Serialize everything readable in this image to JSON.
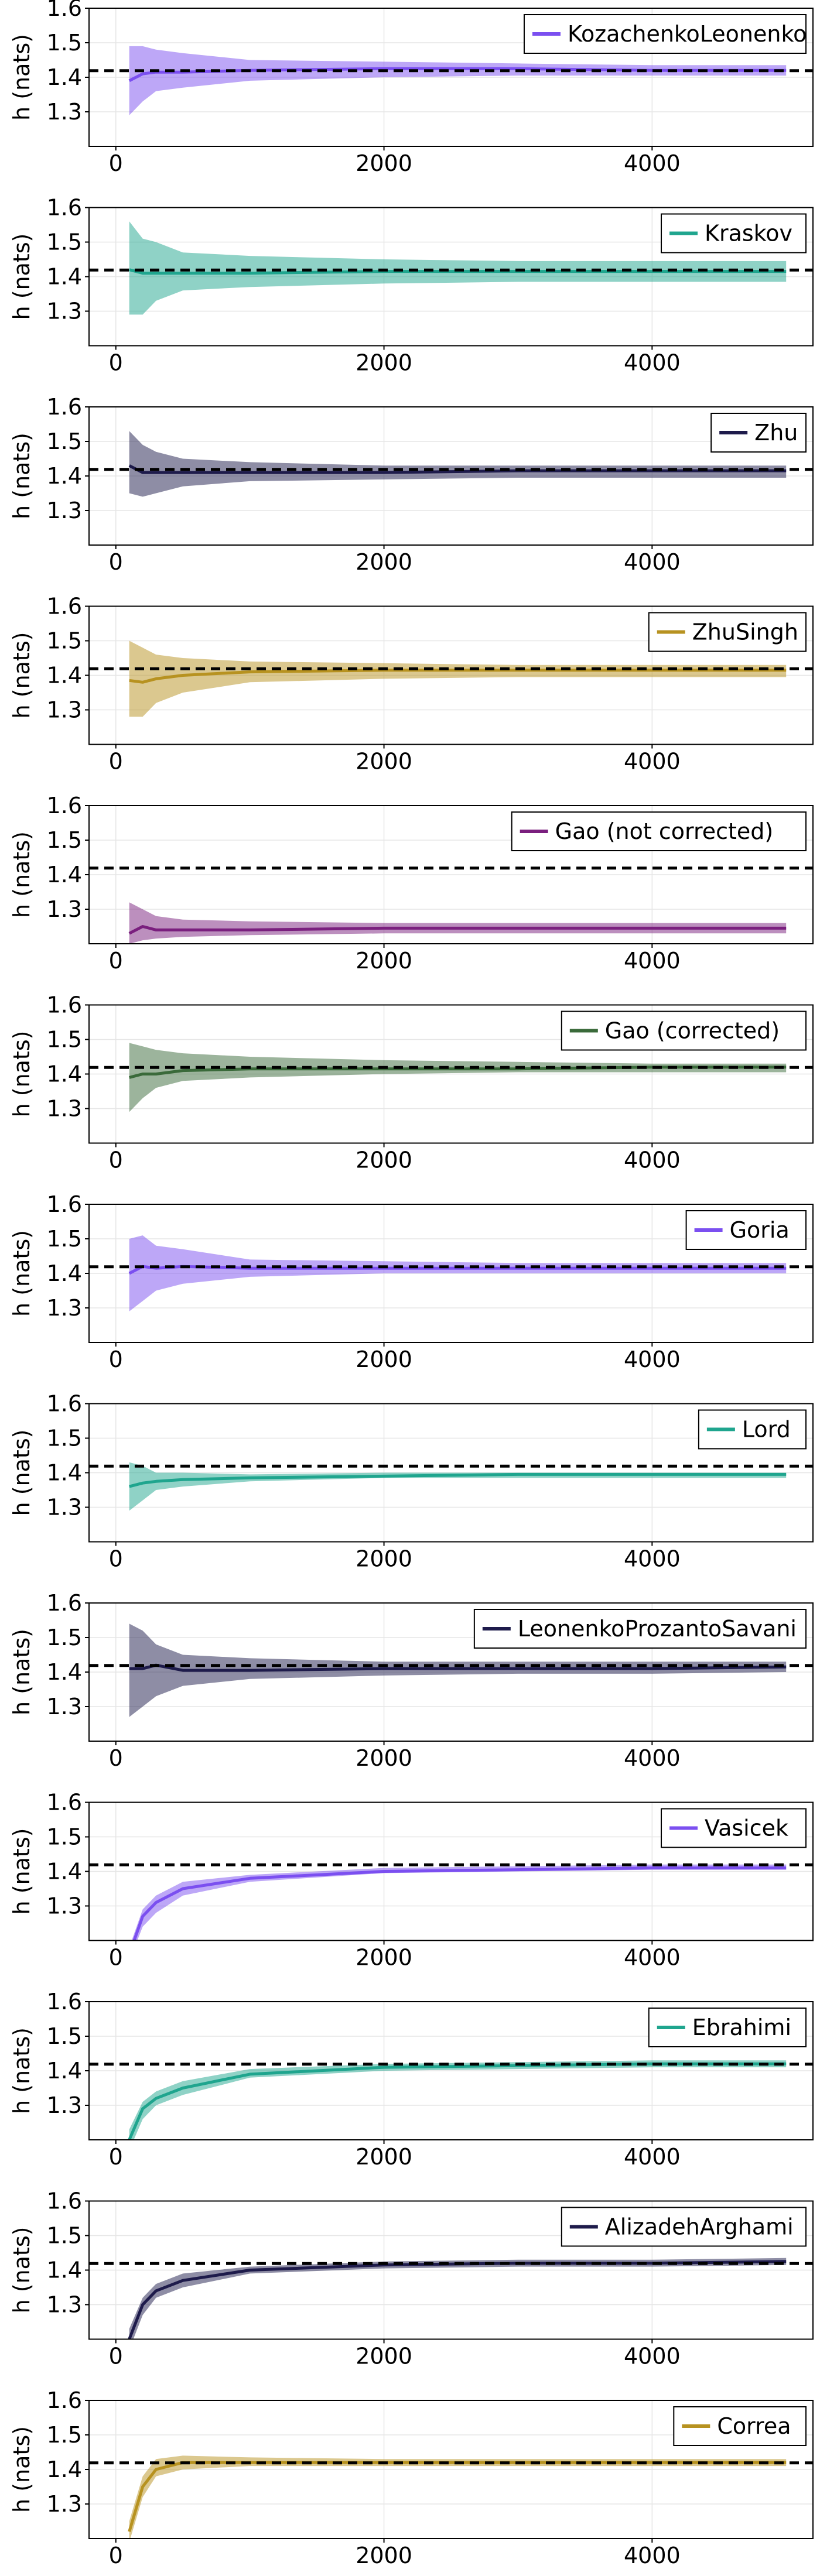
{
  "chart_data": {
    "type": "line",
    "shared": {
      "ylabel": "h (nats)",
      "xlim": [
        -200,
        5200
      ],
      "ylim": [
        1.2,
        1.6
      ],
      "xticks": [
        "0",
        "2000",
        "4000"
      ],
      "xtick_values": [
        0,
        2000,
        4000
      ],
      "yticks": [
        "1.3",
        "1.4",
        "1.5",
        "1.6"
      ],
      "ytick_values": [
        1.3,
        1.4,
        1.5,
        1.6
      ],
      "reference_value": 1.419,
      "grid": true,
      "legend_position": "top-right",
      "x": [
        100,
        200,
        300,
        500,
        1000,
        2000,
        3000,
        4000,
        5000
      ]
    },
    "panels": [
      {
        "legend": "KozachenkoLeonenko",
        "color": "#7b4ff0",
        "mean": [
          1.39,
          1.41,
          1.415,
          1.415,
          1.42,
          1.425,
          1.425,
          1.42,
          1.42
        ],
        "lower": [
          1.29,
          1.33,
          1.36,
          1.37,
          1.39,
          1.4,
          1.405,
          1.405,
          1.405
        ],
        "upper": [
          1.49,
          1.49,
          1.48,
          1.47,
          1.45,
          1.445,
          1.44,
          1.435,
          1.435
        ]
      },
      {
        "legend": "Kraskov",
        "color": "#1fa58e",
        "mean": [
          1.42,
          1.41,
          1.41,
          1.41,
          1.41,
          1.415,
          1.415,
          1.415,
          1.415
        ],
        "lower": [
          1.29,
          1.29,
          1.33,
          1.36,
          1.37,
          1.38,
          1.385,
          1.385,
          1.385
        ],
        "upper": [
          1.56,
          1.51,
          1.5,
          1.47,
          1.46,
          1.45,
          1.445,
          1.445,
          1.445
        ]
      },
      {
        "legend": "Zhu",
        "color": "#1e1b4b",
        "mean": [
          1.43,
          1.41,
          1.41,
          1.41,
          1.41,
          1.41,
          1.415,
          1.415,
          1.415
        ],
        "lower": [
          1.35,
          1.34,
          1.35,
          1.37,
          1.385,
          1.39,
          1.395,
          1.395,
          1.395
        ],
        "upper": [
          1.53,
          1.49,
          1.47,
          1.45,
          1.44,
          1.43,
          1.43,
          1.43,
          1.43
        ]
      },
      {
        "legend": "ZhuSingh",
        "color": "#b79220",
        "mean": [
          1.385,
          1.38,
          1.39,
          1.4,
          1.41,
          1.415,
          1.415,
          1.415,
          1.415
        ],
        "lower": [
          1.28,
          1.28,
          1.32,
          1.35,
          1.38,
          1.39,
          1.395,
          1.395,
          1.395
        ],
        "upper": [
          1.5,
          1.48,
          1.46,
          1.45,
          1.44,
          1.435,
          1.43,
          1.43,
          1.43
        ]
      },
      {
        "legend": "Gao (not corrected)",
        "color": "#7a1f7e",
        "mean": [
          1.23,
          1.25,
          1.24,
          1.24,
          1.24,
          1.245,
          1.245,
          1.245,
          1.245
        ],
        "lower": [
          1.2,
          1.21,
          1.215,
          1.22,
          1.225,
          1.23,
          1.23,
          1.23,
          1.23
        ],
        "upper": [
          1.32,
          1.3,
          1.28,
          1.27,
          1.265,
          1.26,
          1.26,
          1.26,
          1.26
        ]
      },
      {
        "legend": "Gao (corrected)",
        "color": "#3a6a3a",
        "mean": [
          1.39,
          1.4,
          1.4,
          1.41,
          1.415,
          1.415,
          1.415,
          1.42,
          1.42
        ],
        "lower": [
          1.29,
          1.33,
          1.36,
          1.38,
          1.39,
          1.4,
          1.405,
          1.405,
          1.405
        ],
        "upper": [
          1.49,
          1.48,
          1.47,
          1.46,
          1.45,
          1.44,
          1.435,
          1.43,
          1.43
        ]
      },
      {
        "legend": "Goria",
        "color": "#7b4ff0",
        "mean": [
          1.4,
          1.42,
          1.415,
          1.42,
          1.415,
          1.415,
          1.415,
          1.415,
          1.415
        ],
        "lower": [
          1.29,
          1.32,
          1.35,
          1.37,
          1.39,
          1.4,
          1.4,
          1.4,
          1.4
        ],
        "upper": [
          1.5,
          1.51,
          1.48,
          1.47,
          1.44,
          1.435,
          1.43,
          1.43,
          1.43
        ]
      },
      {
        "legend": "Lord",
        "color": "#1fa58e",
        "mean": [
          1.36,
          1.37,
          1.375,
          1.38,
          1.385,
          1.39,
          1.395,
          1.395,
          1.395
        ],
        "lower": [
          1.29,
          1.32,
          1.35,
          1.36,
          1.375,
          1.385,
          1.385,
          1.385,
          1.385
        ],
        "upper": [
          1.43,
          1.42,
          1.4,
          1.4,
          1.395,
          1.4,
          1.4,
          1.4,
          1.4
        ]
      },
      {
        "legend": "LeonenkoProzantoSavani",
        "color": "#1e1b4b",
        "mean": [
          1.41,
          1.41,
          1.42,
          1.405,
          1.405,
          1.41,
          1.41,
          1.41,
          1.415
        ],
        "lower": [
          1.27,
          1.3,
          1.33,
          1.36,
          1.38,
          1.39,
          1.395,
          1.395,
          1.4
        ],
        "upper": [
          1.54,
          1.52,
          1.48,
          1.45,
          1.44,
          1.43,
          1.43,
          1.43,
          1.43
        ]
      },
      {
        "legend": "Vasicek",
        "color": "#7b4ff0",
        "mean": [
          1.16,
          1.27,
          1.31,
          1.35,
          1.38,
          1.4,
          1.405,
          1.41,
          1.41
        ],
        "lower": [
          1.14,
          1.24,
          1.28,
          1.33,
          1.37,
          1.395,
          1.4,
          1.405,
          1.405
        ],
        "upper": [
          1.18,
          1.29,
          1.33,
          1.37,
          1.39,
          1.41,
          1.415,
          1.42,
          1.42
        ]
      },
      {
        "legend": "Ebrahimi",
        "color": "#1fa58e",
        "mean": [
          1.2,
          1.29,
          1.32,
          1.35,
          1.39,
          1.41,
          1.415,
          1.42,
          1.42
        ],
        "lower": [
          1.17,
          1.26,
          1.3,
          1.33,
          1.38,
          1.4,
          1.405,
          1.41,
          1.41
        ],
        "upper": [
          1.23,
          1.31,
          1.34,
          1.37,
          1.405,
          1.42,
          1.425,
          1.43,
          1.43
        ]
      },
      {
        "legend": "AlizadehArghami",
        "color": "#1e1b4b",
        "mean": [
          1.2,
          1.3,
          1.34,
          1.37,
          1.4,
          1.415,
          1.42,
          1.42,
          1.425
        ],
        "lower": [
          1.17,
          1.27,
          1.32,
          1.35,
          1.39,
          1.405,
          1.41,
          1.41,
          1.415
        ],
        "upper": [
          1.23,
          1.32,
          1.36,
          1.39,
          1.41,
          1.425,
          1.43,
          1.43,
          1.435
        ]
      },
      {
        "legend": "Correa",
        "color": "#b79220",
        "mean": [
          1.22,
          1.35,
          1.4,
          1.42,
          1.42,
          1.42,
          1.42,
          1.42,
          1.42
        ],
        "lower": [
          1.19,
          1.32,
          1.38,
          1.4,
          1.41,
          1.41,
          1.41,
          1.41,
          1.41
        ],
        "upper": [
          1.25,
          1.38,
          1.43,
          1.44,
          1.435,
          1.43,
          1.43,
          1.43,
          1.43
        ]
      }
    ]
  }
}
